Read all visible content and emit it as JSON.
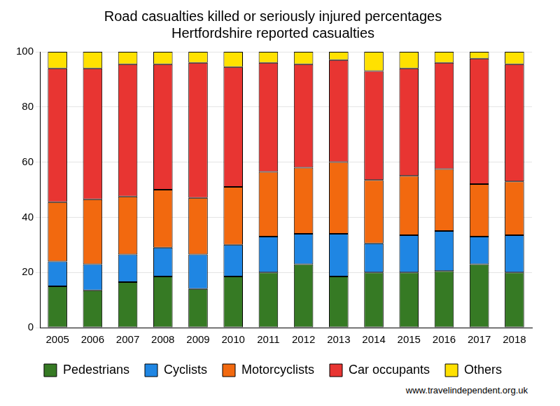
{
  "chart_data": {
    "type": "bar",
    "title": [
      "Road casualties killed or seriously injured percentages",
      "Hertfordshire reported casualties"
    ],
    "source": "www.travelindependent.org.uk",
    "categories": [
      "2005",
      "2006",
      "2007",
      "2008",
      "2009",
      "2010",
      "2011",
      "2012",
      "2013",
      "2014",
      "2015",
      "2016",
      "2017",
      "2018"
    ],
    "series": [
      {
        "name": "Pedestrians",
        "color": "#367a24",
        "values": [
          15,
          13.5,
          16.5,
          18.5,
          14,
          18.5,
          20,
          23,
          18.5,
          20,
          20,
          20.5,
          23,
          20
        ]
      },
      {
        "name": "Cyclists",
        "color": "#1f86e3",
        "values": [
          9,
          9.5,
          10,
          10.5,
          12.5,
          11.5,
          13,
          11,
          15.5,
          10.5,
          13.5,
          14.5,
          10,
          13.5
        ]
      },
      {
        "name": "Motorcyclists",
        "color": "#f2690f",
        "values": [
          21.5,
          23.5,
          21,
          21,
          20.5,
          21,
          23.5,
          24,
          26,
          23,
          21.5,
          22.5,
          19,
          19.5
        ]
      },
      {
        "name": "Car occupants",
        "color": "#e83532",
        "values": [
          48.5,
          47.5,
          48,
          45.5,
          49,
          43.5,
          39.5,
          37.5,
          37,
          39.5,
          39,
          38.5,
          45.5,
          42.5
        ]
      },
      {
        "name": "Others",
        "color": "#ffe100",
        "values": [
          6,
          6,
          4.5,
          4.5,
          4,
          5.5,
          4,
          4.5,
          3,
          7,
          6,
          4,
          2.5,
          4.5
        ]
      }
    ],
    "stacked": true,
    "ylim": [
      0,
      100
    ],
    "yticks": [
      0,
      20,
      40,
      60,
      80,
      100
    ],
    "grid": true,
    "legend": "bottom"
  }
}
